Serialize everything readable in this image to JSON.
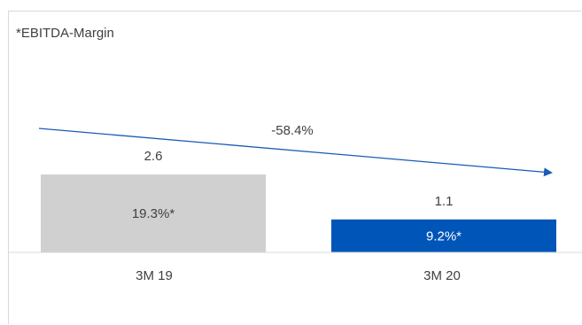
{
  "chart_data": {
    "type": "bar",
    "title": "",
    "note": "*EBITDA-Margin",
    "categories": [
      "3M 19",
      "3M 20"
    ],
    "values": [
      2.6,
      1.1
    ],
    "value_labels": [
      "2.6",
      "1.1"
    ],
    "margin_labels": [
      "19.3%*",
      "9.2%*"
    ],
    "change_label": "-58.4%",
    "bar_colors": [
      "#d0d0d0",
      "#0055b8"
    ],
    "margin_label_colors": [
      "#404040",
      "#ffffff"
    ],
    "arrow_color": "#1a5bb5",
    "ylim": [
      0,
      6
    ],
    "grid": false
  }
}
